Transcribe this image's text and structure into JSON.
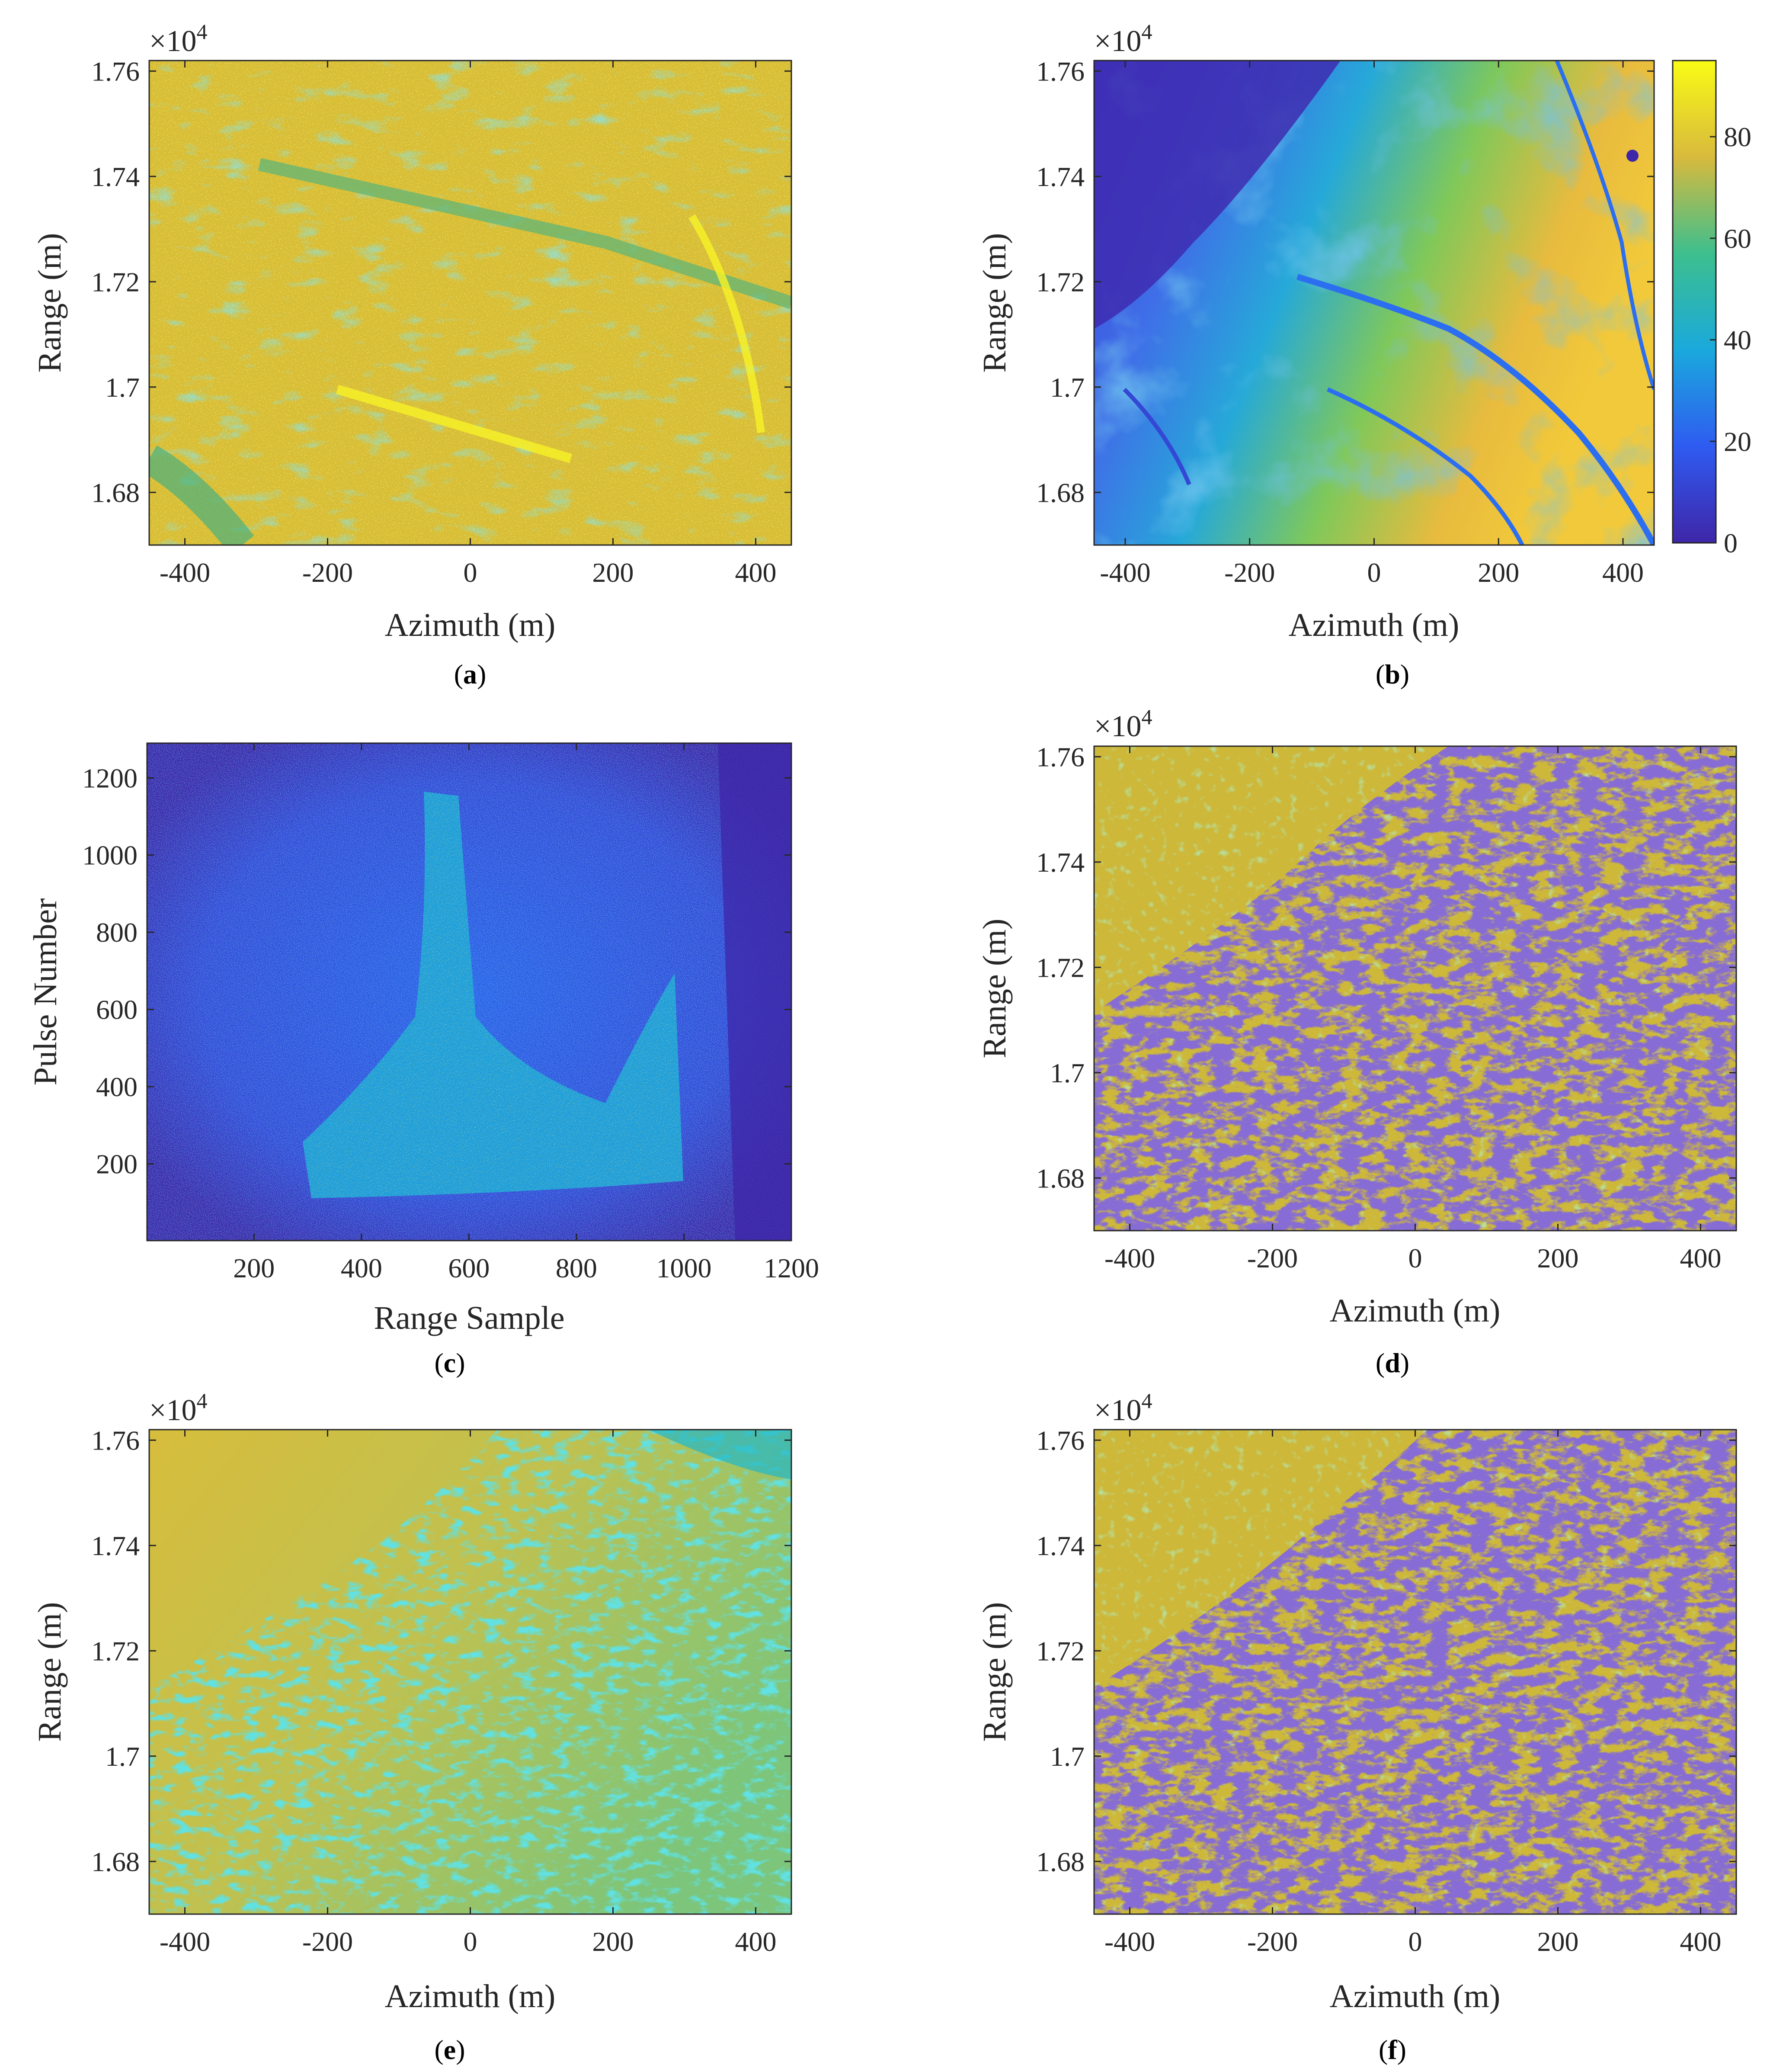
{
  "colors": {
    "parula_dark_blue": "#3e26a8",
    "parula_blue": "#2f7ef5",
    "parula_cyan": "#16c0bf",
    "parula_green": "#7ecb4b",
    "parula_orange": "#f5b93b",
    "parula_yellow": "#f9fb15",
    "panel_a_base": "#d8bd36",
    "panel_e_base": "#c9c04a"
  },
  "chart_data": [
    {
      "id": "a",
      "type": "heatmap",
      "caption": {
        "open": "(",
        "letter": "a",
        "close": ")"
      },
      "xlabel": "Azimuth (m)",
      "ylabel": "Range (m)",
      "xlim": [
        -450,
        450
      ],
      "ylim": [
        16700,
        17620
      ],
      "xticks": [
        -400,
        -200,
        0,
        200,
        400
      ],
      "yticks": [
        16800,
        17000,
        17200,
        17400,
        17600
      ],
      "ytick_labels": [
        "1.68",
        "1.7",
        "1.72",
        "1.74",
        "1.76"
      ],
      "exponent": {
        "base": "×10",
        "power": "4"
      },
      "colorbar": null
    },
    {
      "id": "b",
      "type": "heatmap",
      "caption": {
        "open": "(",
        "letter": "b",
        "close": ")"
      },
      "xlabel": "Azimuth (m)",
      "ylabel": "Range (m)",
      "xlim": [
        -450,
        450
      ],
      "ylim": [
        16700,
        17620
      ],
      "xticks": [
        -400,
        -200,
        0,
        200,
        400
      ],
      "yticks": [
        16800,
        17000,
        17200,
        17400,
        17600
      ],
      "ytick_labels": [
        "1.68",
        "1.7",
        "1.72",
        "1.74",
        "1.76"
      ],
      "exponent": {
        "base": "×10",
        "power": "4"
      },
      "colorbar": {
        "range": [
          0,
          95
        ],
        "ticks": [
          0,
          20,
          40,
          60,
          80
        ]
      }
    },
    {
      "id": "c",
      "type": "heatmap",
      "caption": {
        "open": "(",
        "letter": "c",
        "close": ")"
      },
      "xlabel": "Range Sample",
      "ylabel": "Pulse Number",
      "xlim": [
        1,
        1200
      ],
      "ylim": [
        1,
        1290
      ],
      "xticks": [
        200,
        400,
        600,
        800,
        1000,
        1200
      ],
      "yticks": [
        200,
        400,
        600,
        800,
        1000,
        1200
      ],
      "ytick_labels": [
        "200",
        "400",
        "600",
        "800",
        "1000",
        "1200"
      ],
      "exponent": null,
      "colorbar": null
    },
    {
      "id": "d",
      "type": "heatmap",
      "caption": {
        "open": "(",
        "letter": "d",
        "close": ")"
      },
      "xlabel": "Azimuth (m)",
      "ylabel": "Range (m)",
      "xlim": [
        -450,
        450
      ],
      "ylim": [
        16700,
        17620
      ],
      "xticks": [
        -400,
        -200,
        0,
        200,
        400
      ],
      "yticks": [
        16800,
        17000,
        17200,
        17400,
        17600
      ],
      "ytick_labels": [
        "1.68",
        "1.7",
        "1.72",
        "1.74",
        "1.76"
      ],
      "exponent": {
        "base": "×10",
        "power": "4"
      },
      "colorbar": null
    },
    {
      "id": "e",
      "type": "heatmap",
      "caption": {
        "open": "(",
        "letter": "e",
        "close": ")"
      },
      "xlabel": "Azimuth (m)",
      "ylabel": "Range (m)",
      "xlim": [
        -450,
        450
      ],
      "ylim": [
        16700,
        17620
      ],
      "xticks": [
        -400,
        -200,
        0,
        200,
        400
      ],
      "yticks": [
        16800,
        17000,
        17200,
        17400,
        17600
      ],
      "ytick_labels": [
        "1.68",
        "1.7",
        "1.72",
        "1.74",
        "1.76"
      ],
      "exponent": {
        "base": "×10",
        "power": "4"
      },
      "colorbar": null
    },
    {
      "id": "f",
      "type": "heatmap",
      "caption": {
        "open": "(",
        "letter": "f",
        "close": ")"
      },
      "xlabel": "Azimuth (m)",
      "ylabel": "Range (m)",
      "xlim": [
        -450,
        450
      ],
      "ylim": [
        16700,
        17620
      ],
      "xticks": [
        -400,
        -200,
        0,
        200,
        400
      ],
      "yticks": [
        16800,
        17000,
        17200,
        17400,
        17600
      ],
      "ytick_labels": [
        "1.68",
        "1.7",
        "1.72",
        "1.74",
        "1.76"
      ],
      "exponent": {
        "base": "×10",
        "power": "4"
      },
      "colorbar": null
    }
  ]
}
